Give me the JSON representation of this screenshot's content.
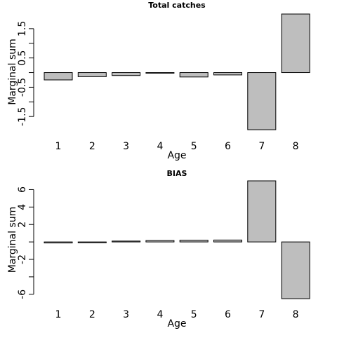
{
  "chart_data": [
    {
      "type": "bar",
      "title": "Total catches",
      "xlabel": "Age",
      "ylabel": "Marginal sum",
      "categories": [
        "1",
        "2",
        "3",
        "4",
        "5",
        "6",
        "7",
        "8"
      ],
      "values": [
        -0.25,
        -0.14,
        -0.1,
        -0.02,
        -0.15,
        -0.08,
        -1.95,
        2.0
      ],
      "ylim": [
        -1.95,
        2.0
      ],
      "yticks": [
        -1.5,
        -1,
        -0.5,
        0,
        0.5,
        1,
        1.5
      ],
      "ytick_labels": [
        "-1.5",
        "",
        "-0.5",
        "",
        "0.5",
        "",
        "1.5"
      ],
      "bar_color": "#bebebe",
      "grid": false
    },
    {
      "type": "bar",
      "title": "BIAS",
      "xlabel": "Age",
      "ylabel": "Marginal sum",
      "categories": [
        "1",
        "2",
        "3",
        "4",
        "5",
        "6",
        "7",
        "8"
      ],
      "values": [
        -0.12,
        -0.1,
        0.1,
        0.16,
        0.2,
        0.22,
        7.0,
        -6.5
      ],
      "ylim": [
        -6.5,
        7.0
      ],
      "yticks": [
        -6,
        -4,
        -2,
        0,
        2,
        4,
        6
      ],
      "ytick_labels": [
        "-6",
        "",
        "-2",
        "",
        "2",
        "4",
        "6"
      ],
      "bar_color": "#bebebe",
      "grid": false
    }
  ]
}
